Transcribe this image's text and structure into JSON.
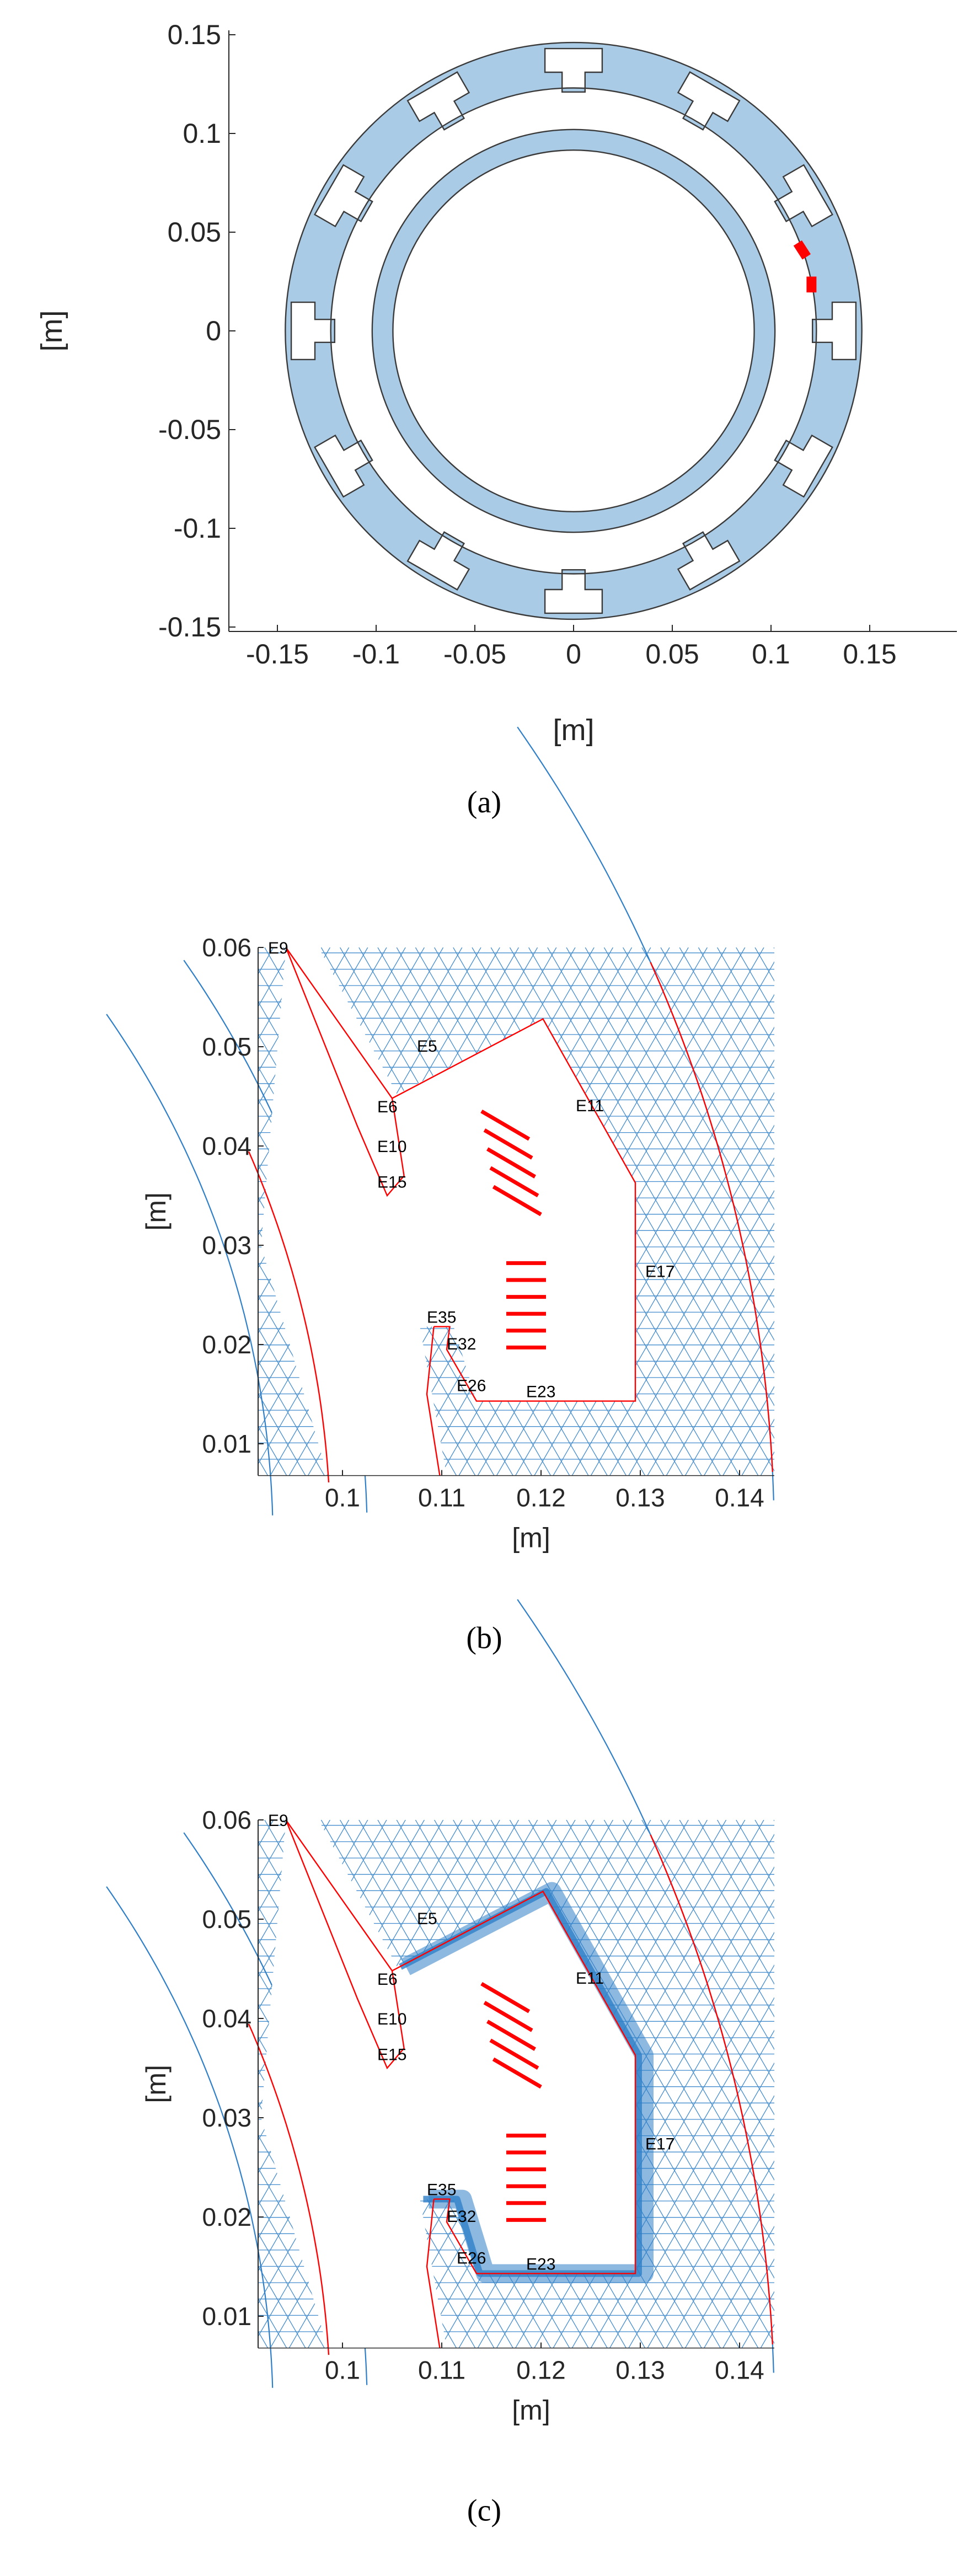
{
  "chart_data": [
    {
      "type": "diagram",
      "caption": "(a)",
      "xlabel": "[m]",
      "ylabel": "[m]",
      "xlim": [
        -0.19,
        0.19
      ],
      "ylim": [
        -0.155,
        0.155
      ],
      "x_ticks": [
        "-0.15",
        "-0.1",
        "-0.05",
        "0",
        "0.05",
        "0.1",
        "0.15"
      ],
      "x_tick_values": [
        -0.15,
        -0.1,
        -0.05,
        0,
        0.05,
        0.1,
        0.15
      ],
      "y_ticks": [
        "0.15",
        "0.1",
        "0.05",
        "0",
        "-0.05",
        "-0.1",
        "-0.15"
      ],
      "y_tick_values": [
        0.15,
        0.1,
        0.05,
        0,
        -0.05,
        -0.1,
        -0.15
      ],
      "colors": {
        "fill": "#aacbe6",
        "edge": "#3a3a3a",
        "coil": "#ff0000"
      }
    },
    {
      "type": "mesh",
      "caption": "(b)",
      "xlabel": "[m]",
      "ylabel": "[m]",
      "x_ticks": [
        "0.1",
        "0.11",
        "0.12",
        "0.13",
        "0.14"
      ],
      "x_tick_values": [
        0.1,
        0.11,
        0.12,
        0.13,
        0.14
      ],
      "y_ticks": [
        "0.06",
        "0.05",
        "0.04",
        "0.03",
        "0.02",
        "0.01"
      ],
      "y_tick_values": [
        0.06,
        0.05,
        0.04,
        0.03,
        0.02,
        0.01
      ],
      "edge_labels": [
        "E9",
        "E5",
        "E6",
        "E11",
        "E10",
        "E15",
        "E17",
        "E35",
        "E32",
        "E26",
        "E23"
      ],
      "colors": {
        "mesh": "#2f7fc8",
        "boundary": "#ff0000"
      }
    },
    {
      "type": "mesh",
      "caption": "(c)",
      "xlabel": "[m]",
      "ylabel": "[m]",
      "x_ticks": [
        "0.1",
        "0.11",
        "0.12",
        "0.13",
        "0.14"
      ],
      "x_tick_values": [
        0.1,
        0.11,
        0.12,
        0.13,
        0.14
      ],
      "y_ticks": [
        "0.06",
        "0.05",
        "0.04",
        "0.03",
        "0.02",
        "0.01"
      ],
      "y_tick_values": [
        0.06,
        0.05,
        0.04,
        0.03,
        0.02,
        0.01
      ],
      "edge_labels": [
        "E9",
        "E5",
        "E6",
        "E11",
        "E10",
        "E15",
        "E17",
        "E35",
        "E32",
        "E26",
        "E23"
      ],
      "refined": true,
      "colors": {
        "mesh": "#2f7fc8",
        "boundary": "#ff0000"
      }
    }
  ]
}
